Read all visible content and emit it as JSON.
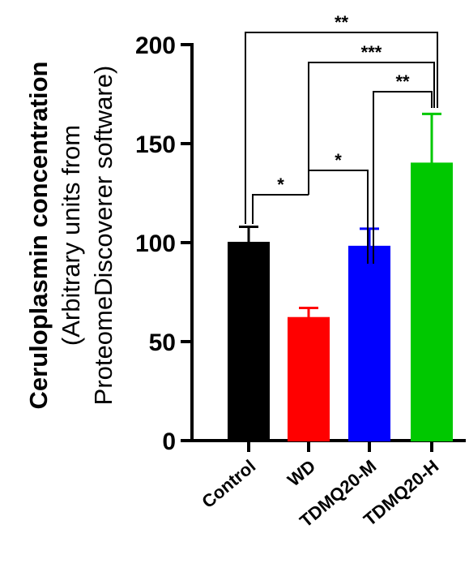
{
  "chart_data": {
    "type": "bar",
    "categories": [
      "Control",
      "WD",
      "TDMQ20-M",
      "TDMQ20-H"
    ],
    "values": [
      100,
      62,
      98,
      140
    ],
    "error_upper": [
      108,
      67,
      107,
      165
    ],
    "colors": [
      "#000000",
      "#ff0000",
      "#0000ff",
      "#00c800"
    ],
    "ylim": [
      0,
      200
    ],
    "yticks": [
      0,
      50,
      100,
      150,
      200
    ],
    "ylabel_line1": "Ceruloplasmin concentration",
    "ylabel_line2": "(Arbitrary units from",
    "ylabel_line3": "ProteomeDiscoverer software)",
    "xlabel": "",
    "title": "",
    "significance": [
      {
        "from": 0,
        "to": 1,
        "label": "*"
      },
      {
        "from": 1,
        "to": 2,
        "label": "*"
      },
      {
        "from": 2,
        "to": 3,
        "label": "**"
      },
      {
        "from": 1,
        "to": 3,
        "label": "***"
      },
      {
        "from": 0,
        "to": 3,
        "label": "**"
      }
    ]
  }
}
